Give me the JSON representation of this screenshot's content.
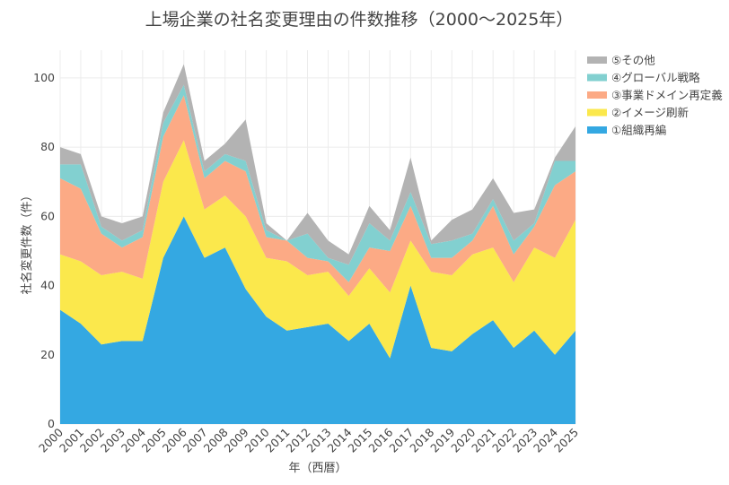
{
  "chart_data": {
    "type": "area",
    "stacked": true,
    "title": "上場企業の社名変更理由の件数推移（2000〜2025年）",
    "xlabel": "年（西暦）",
    "ylabel": "社名変更件数（件）",
    "ylim": [
      0,
      108
    ],
    "yticks": [
      0,
      20,
      40,
      60,
      80,
      100
    ],
    "categories": [
      "2000",
      "2001",
      "2002",
      "2003",
      "2004",
      "2005",
      "2006",
      "2007",
      "2008",
      "2009",
      "2010",
      "2011",
      "2012",
      "2013",
      "2014",
      "2015",
      "2016",
      "2017",
      "2018",
      "2019",
      "2020",
      "2021",
      "2022",
      "2023",
      "2024",
      "2025"
    ],
    "series": [
      {
        "name": "①組織再編",
        "color": "#34a8e2",
        "values": [
          33,
          29,
          23,
          24,
          24,
          48,
          60,
          48,
          51,
          39,
          31,
          27,
          28,
          29,
          24,
          29,
          19,
          40,
          22,
          21,
          26,
          30,
          22,
          27,
          20,
          27
        ]
      },
      {
        "name": "②イメージ刷新",
        "color": "#fbe84c",
        "values": [
          16,
          18,
          20,
          20,
          18,
          22,
          22,
          14,
          15,
          21,
          17,
          20,
          15,
          15,
          13,
          16,
          19,
          13,
          22,
          22,
          23,
          21,
          19,
          24,
          28,
          32
        ]
      },
      {
        "name": "③事業ドメイン再定義",
        "color": "#fcaa85",
        "values": [
          22,
          21,
          12,
          7,
          12,
          13,
          13,
          9,
          10,
          13,
          6,
          6,
          5,
          3,
          4,
          6,
          12,
          10,
          4,
          5,
          4,
          12,
          8,
          6,
          21,
          14
        ]
      },
      {
        "name": "④グローバル戦略",
        "color": "#82d0d0",
        "values": [
          4,
          7,
          2,
          2,
          2,
          4,
          3,
          2,
          2,
          3,
          2,
          0,
          7,
          1,
          5,
          7,
          3,
          4,
          4,
          5,
          2,
          2,
          4,
          1,
          7,
          3
        ]
      },
      {
        "name": "⑤その他",
        "color": "#b3b3b3",
        "values": [
          5,
          3,
          3,
          5,
          4,
          3,
          6,
          3,
          3,
          12,
          2,
          0,
          6,
          5,
          3,
          5,
          3,
          10,
          1,
          6,
          7,
          6,
          8,
          4,
          1,
          10
        ]
      }
    ],
    "legend_position": "top-right",
    "grid": true
  }
}
